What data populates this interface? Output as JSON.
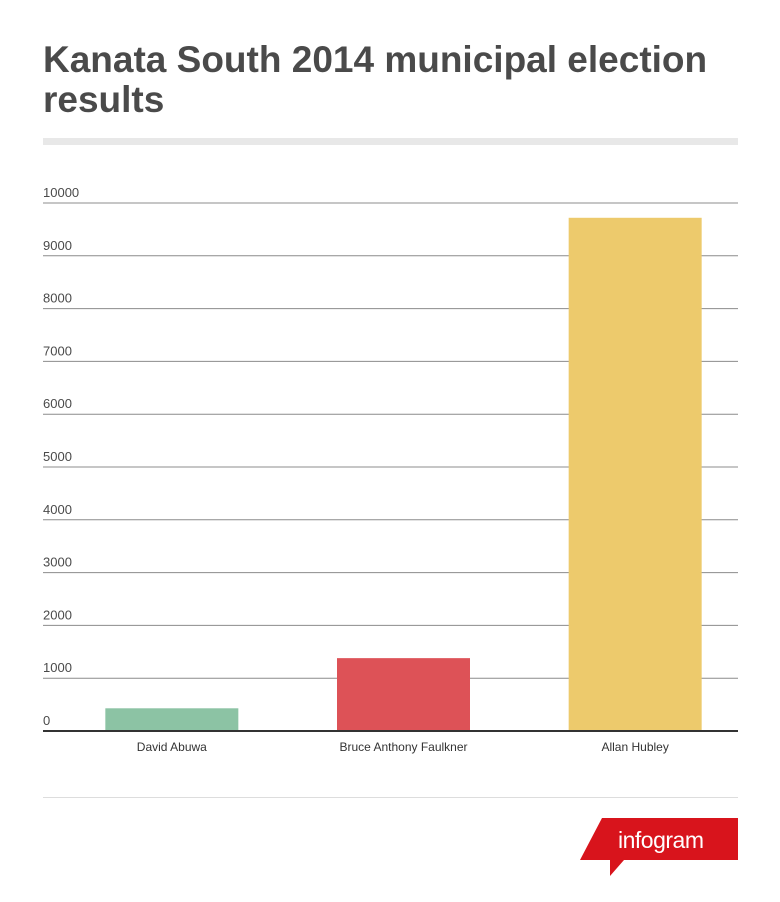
{
  "title": "Kanata South 2014 municipal election results",
  "brand": {
    "name": "infogram",
    "color": "#d8141c"
  },
  "chart_data": {
    "type": "bar",
    "title": "Kanata South 2014 municipal election results",
    "xlabel": "",
    "ylabel": "",
    "categories": [
      "David Abuwa",
      "Bruce Anthony Faulkner",
      "Allan Hubley"
    ],
    "values": [
      430,
      1380,
      9720
    ],
    "colors": [
      "#8cc3a4",
      "#dd5257",
      "#edca6c"
    ],
    "ylim": [
      0,
      10000
    ],
    "yticks": [
      0,
      1000,
      2000,
      3000,
      4000,
      5000,
      6000,
      7000,
      8000,
      9000,
      10000
    ],
    "grid": true,
    "legend": "none"
  }
}
